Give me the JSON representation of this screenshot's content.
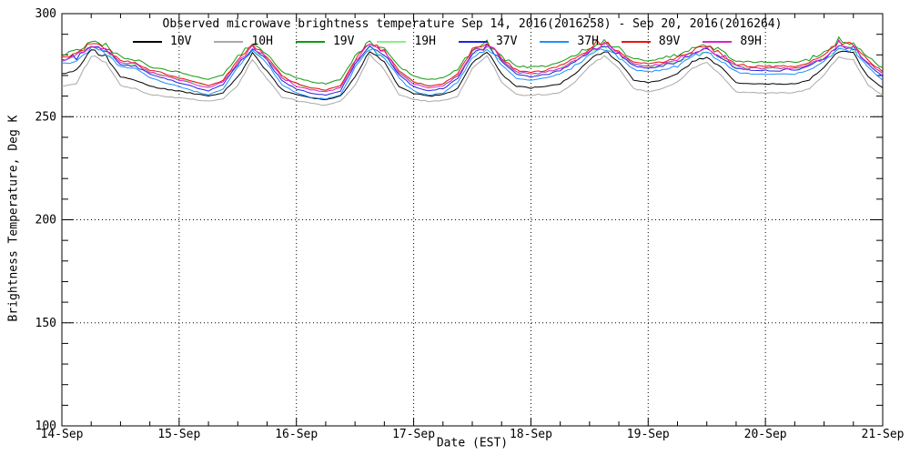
{
  "chart_data": {
    "type": "line",
    "title": "Observed microwave brightness temperature Sep 14, 2016(2016258) - Sep 20, 2016(2016264)",
    "xlabel": "Date (EST)",
    "ylabel": "Brightness Temperature, Deg K",
    "ylim": [
      100,
      300
    ],
    "y_major_ticks": [
      100,
      150,
      200,
      250,
      300
    ],
    "y_minor_step": 10,
    "x_tick_labels": [
      "14-Sep",
      "15-Sep",
      "16-Sep",
      "17-Sep",
      "18-Sep",
      "19-Sep",
      "20-Sep",
      "21-Sep"
    ],
    "x_span_days": 7,
    "x_minor_step_hours": 6,
    "x_step_hours": 3,
    "grid": "dotted lines at day boundaries and at 150/200/250 K",
    "legend_position": "top-inside",
    "frame_color": "#000000",
    "series": [
      {
        "name": "10V",
        "color": "#000000",
        "values": [
          271.0,
          272.5,
          282.0,
          279.2,
          269.3,
          267.9,
          264.7,
          263.5,
          262.4,
          261.2,
          260.0,
          261.8,
          269.3,
          280.6,
          272.1,
          263.0,
          260.6,
          259.0,
          258.0,
          260.0,
          269.3,
          282.0,
          276.4,
          264.7,
          261.2,
          260.0,
          260.6,
          263.5,
          276.4,
          282.0,
          270.7,
          264.7,
          264.1,
          264.7,
          265.9,
          270.7,
          277.8,
          282.0,
          276.4,
          267.9,
          266.5,
          267.9,
          270.7,
          276.4,
          279.2,
          273.5,
          266.5,
          265.9,
          265.9,
          265.9,
          265.9,
          267.9,
          273.5,
          282.0,
          280.6,
          269.3,
          264.1
        ]
      },
      {
        "name": "10H",
        "color": "#A9A9A9",
        "values": [
          264.5,
          266.0,
          279.5,
          276.3,
          265.2,
          263.6,
          260.8,
          260.0,
          259.1,
          258.3,
          257.5,
          258.7,
          265.2,
          277.9,
          268.4,
          259.5,
          257.9,
          256.5,
          255.5,
          257.5,
          265.2,
          279.5,
          273.1,
          260.8,
          258.3,
          257.5,
          257.9,
          260.0,
          273.1,
          279.5,
          266.8,
          260.8,
          260.4,
          260.8,
          261.6,
          266.8,
          274.7,
          279.5,
          273.1,
          263.6,
          262.0,
          263.6,
          266.8,
          273.1,
          276.3,
          270.0,
          262.0,
          261.6,
          261.6,
          261.6,
          261.6,
          263.6,
          270.0,
          279.5,
          277.9,
          265.2,
          260.4
        ]
      },
      {
        "name": "19V",
        "color": "#119911",
        "values": [
          280.6,
          281.5,
          286.5,
          284.8,
          278.9,
          278.1,
          274.7,
          273.0,
          271.4,
          269.7,
          268.0,
          270.5,
          278.9,
          285.7,
          280.6,
          272.2,
          268.8,
          267.0,
          266.0,
          268.0,
          278.9,
          286.5,
          283.1,
          274.7,
          269.7,
          268.0,
          268.8,
          273.0,
          283.1,
          286.5,
          279.8,
          274.7,
          273.9,
          274.7,
          276.4,
          279.8,
          284.0,
          286.5,
          283.1,
          278.1,
          277.3,
          278.1,
          279.8,
          283.1,
          284.8,
          281.5,
          277.3,
          276.4,
          276.4,
          276.4,
          276.4,
          278.1,
          281.5,
          286.5,
          285.7,
          278.9,
          273.9
        ]
      },
      {
        "name": "19H",
        "color": "#8CEE8C",
        "values": [
          277.6,
          278.5,
          283.5,
          281.8,
          275.9,
          275.1,
          271.7,
          270.0,
          268.4,
          266.7,
          265.0,
          267.5,
          275.9,
          282.7,
          277.6,
          269.2,
          265.8,
          264.0,
          263.0,
          265.0,
          275.9,
          283.5,
          280.1,
          271.7,
          266.7,
          265.0,
          265.8,
          270.0,
          280.1,
          283.5,
          276.8,
          271.7,
          270.9,
          271.7,
          273.4,
          276.8,
          281.0,
          283.5,
          280.1,
          275.1,
          274.3,
          275.1,
          276.8,
          280.1,
          281.8,
          278.5,
          274.3,
          273.4,
          273.4,
          273.4,
          273.4,
          275.1,
          278.5,
          283.5,
          282.7,
          275.9,
          270.9
        ]
      },
      {
        "name": "37V",
        "color": "#2323DD",
        "values": [
          277.5,
          278.5,
          284.5,
          282.5,
          275.5,
          274.5,
          270.5,
          268.5,
          266.5,
          264.5,
          262.5,
          265.5,
          275.5,
          283.5,
          277.5,
          267.5,
          263.5,
          261.5,
          260.5,
          262.5,
          275.5,
          284.5,
          280.5,
          270.5,
          264.5,
          262.5,
          263.5,
          268.5,
          280.5,
          284.5,
          276.5,
          270.5,
          269.5,
          270.5,
          272.5,
          276.5,
          281.5,
          284.5,
          280.5,
          274.5,
          273.5,
          274.5,
          276.5,
          280.5,
          282.5,
          278.5,
          273.5,
          272.5,
          272.5,
          272.5,
          272.5,
          274.5,
          278.5,
          284.5,
          283.5,
          275.5,
          269.5
        ]
      },
      {
        "name": "37H",
        "color": "#1E90FF",
        "values": [
          275.8,
          276.9,
          283.0,
          280.9,
          274.4,
          273.8,
          268.7,
          266.6,
          264.6,
          262.5,
          260.5,
          263.6,
          273.8,
          282.0,
          275.8,
          265.6,
          261.5,
          259.5,
          258.5,
          260.5,
          273.8,
          283.0,
          278.9,
          268.7,
          262.5,
          260.5,
          261.5,
          266.6,
          278.9,
          283.0,
          274.8,
          268.7,
          267.7,
          268.7,
          270.7,
          274.8,
          279.9,
          283.0,
          278.9,
          272.8,
          271.8,
          272.8,
          274.8,
          278.9,
          281.0,
          276.9,
          271.8,
          270.7,
          270.7,
          270.7,
          270.7,
          272.8,
          276.9,
          283.0,
          282.0,
          273.8,
          267.7
        ]
      },
      {
        "name": "89V",
        "color": "#EE1111",
        "values": [
          279.3,
          280.3,
          286.0,
          284.1,
          277.4,
          276.5,
          272.6,
          270.7,
          268.8,
          266.9,
          265.0,
          267.9,
          277.4,
          285.0,
          279.3,
          269.8,
          266.0,
          264.0,
          263.0,
          265.0,
          277.4,
          286.0,
          282.2,
          272.6,
          266.9,
          265.0,
          266.0,
          270.7,
          282.2,
          286.0,
          278.4,
          272.6,
          271.7,
          272.6,
          274.5,
          278.4,
          283.1,
          286.0,
          282.2,
          276.5,
          275.5,
          276.5,
          278.4,
          282.2,
          284.1,
          280.3,
          275.5,
          274.5,
          274.5,
          274.5,
          274.5,
          276.5,
          280.3,
          286.0,
          285.0,
          277.4,
          271.7
        ]
      },
      {
        "name": "89H",
        "color": "#DD22CC",
        "values": [
          278.3,
          279.3,
          285.0,
          283.1,
          276.4,
          275.5,
          271.6,
          269.7,
          267.8,
          265.9,
          264.0,
          266.9,
          276.4,
          284.0,
          278.3,
          268.8,
          265.0,
          263.0,
          262.0,
          264.0,
          276.4,
          285.0,
          281.2,
          271.6,
          265.9,
          264.0,
          265.0,
          269.7,
          281.2,
          285.0,
          277.4,
          271.6,
          270.7,
          271.6,
          273.5,
          277.4,
          282.1,
          285.0,
          281.2,
          275.5,
          274.5,
          275.5,
          277.4,
          281.2,
          283.1,
          279.3,
          274.5,
          273.5,
          273.5,
          273.5,
          273.5,
          275.5,
          279.3,
          285.0,
          284.0,
          276.4,
          270.7
        ]
      }
    ]
  }
}
